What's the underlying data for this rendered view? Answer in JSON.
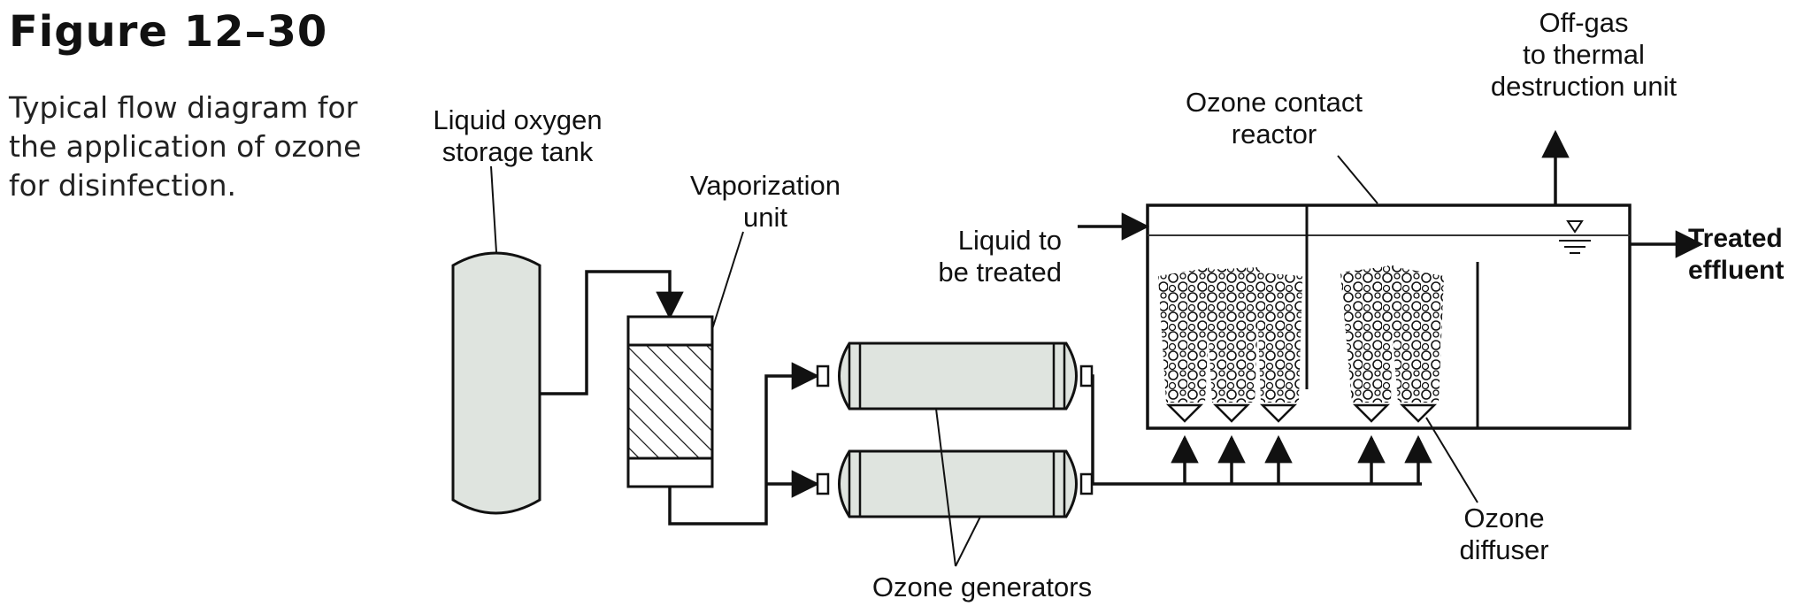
{
  "figure": {
    "title": "Figure 12–30",
    "caption_lines": [
      "Typical flow diagram for",
      "the application of ozone",
      "for disinfection."
    ]
  },
  "labels": {
    "lox_tank": [
      "Liquid oxygen",
      "storage tank"
    ],
    "vaporization_unit": [
      "Vaporization",
      "unit"
    ],
    "liquid_in": [
      "Liquid to",
      "be treated"
    ],
    "contact_reactor": [
      "Ozone contact",
      "reactor"
    ],
    "offgas": [
      "Off-gas",
      "to thermal",
      "destruction unit"
    ],
    "treated_effluent": [
      "Treated",
      "effluent"
    ],
    "ozone_generators": "Ozone generators",
    "ozone_diffuser": [
      "Ozone",
      "diffuser"
    ]
  },
  "colors": {
    "equipment_fill": "#dfe4df",
    "line": "#111111",
    "water_line": "#333333"
  }
}
